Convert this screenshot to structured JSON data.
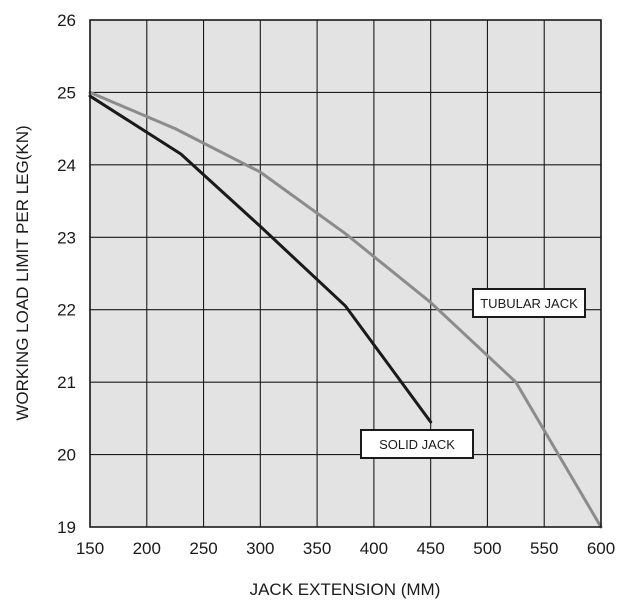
{
  "chart_data": {
    "type": "line",
    "title": "",
    "xlabel": "JACK EXTENSION (MM)",
    "ylabel": "WORKING LOAD LIMIT PER LEG(KN)",
    "xlim": [
      150,
      600
    ],
    "ylim": [
      19,
      26
    ],
    "xticks": [
      "150",
      "200",
      "250",
      "300",
      "350",
      "400",
      "450",
      "500",
      "550",
      "600"
    ],
    "yticks": [
      "19",
      "20",
      "21",
      "22",
      "23",
      "24",
      "25",
      "26"
    ],
    "grid": true,
    "legend": "none",
    "series": [
      {
        "name": "SOLID JACK",
        "color": "#1a1a1a",
        "x": [
          150,
          230,
          300,
          375,
          450
        ],
        "y": [
          24.95,
          24.15,
          23.15,
          22.05,
          20.45
        ]
      },
      {
        "name": "TUBULAR JACK",
        "color": "#8c8c8c",
        "x": [
          150,
          225,
          300,
          375,
          450,
          525,
          600
        ],
        "y": [
          25.0,
          24.5,
          23.9,
          23.05,
          22.1,
          21.0,
          19.0
        ]
      }
    ],
    "colors": {
      "plot_background": "#e3e3e3",
      "grid": "#1a1a1a",
      "text": "#1a1a1a"
    }
  }
}
